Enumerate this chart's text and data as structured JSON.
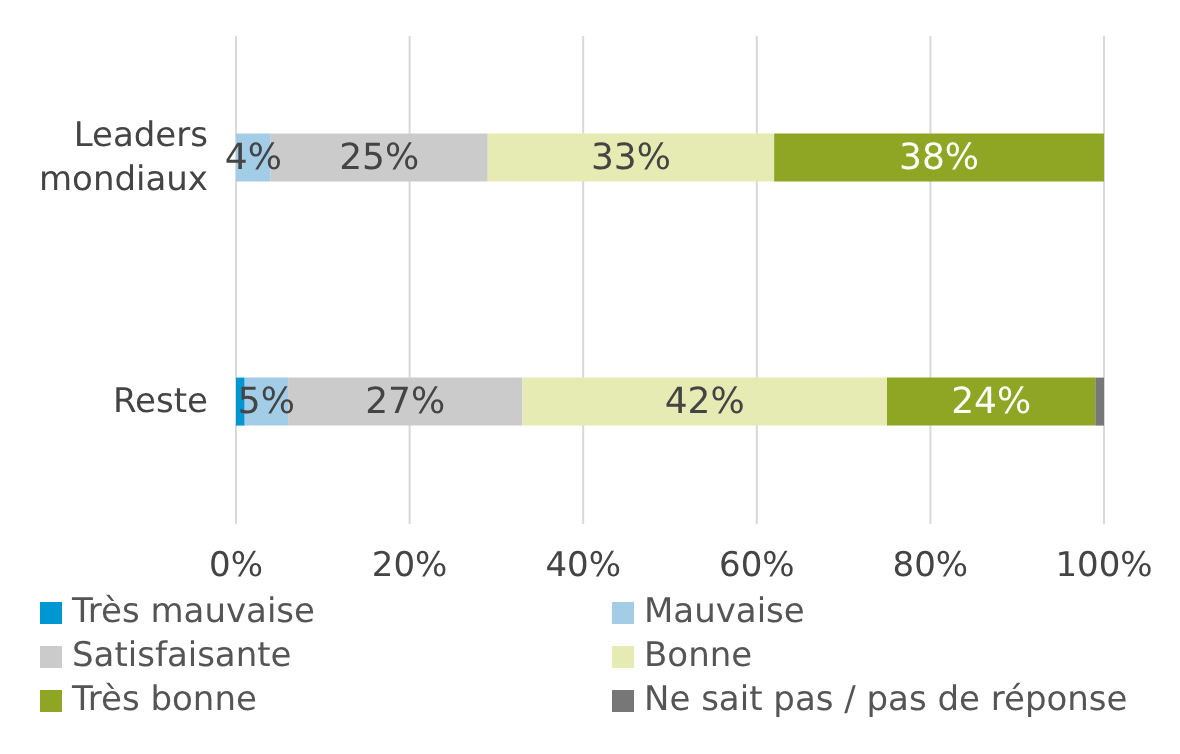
{
  "chart_data": {
    "type": "bar",
    "orientation": "horizontal",
    "stacked": true,
    "categories": [
      "Leaders mondiaux",
      "Reste"
    ],
    "series": [
      {
        "name": "Très mauvaise",
        "color": "#0096d2",
        "values": [
          0,
          1
        ],
        "value_labels": [
          null,
          null
        ]
      },
      {
        "name": "Mauvaise",
        "color": "#a3cde6",
        "values": [
          4,
          5
        ],
        "value_labels": [
          "4%",
          "5%"
        ]
      },
      {
        "name": "Satisfaisante",
        "color": "#cbcbcb",
        "values": [
          25,
          27
        ],
        "value_labels": [
          "25%",
          "27%"
        ]
      },
      {
        "name": "Bonne",
        "color": "#e5ebb2",
        "values": [
          33,
          42
        ],
        "value_labels": [
          "33%",
          "42%"
        ]
      },
      {
        "name": "Très bonne",
        "color": "#8fa624",
        "values": [
          38,
          24
        ],
        "value_labels": [
          "38%",
          "24%"
        ]
      },
      {
        "name": "Ne sait pas / pas de réponse",
        "color": "#777777",
        "values": [
          0,
          1
        ],
        "value_labels": [
          null,
          null
        ]
      }
    ],
    "xlim": [
      0,
      100
    ],
    "xticks": [
      {
        "value": 0,
        "label": "0%"
      },
      {
        "value": 20,
        "label": "20%"
      },
      {
        "value": 40,
        "label": "40%"
      },
      {
        "value": 60,
        "label": "60%"
      },
      {
        "value": 80,
        "label": "80%"
      },
      {
        "value": 100,
        "label": "100%"
      }
    ],
    "grid": "x",
    "legend": "bottom"
  }
}
